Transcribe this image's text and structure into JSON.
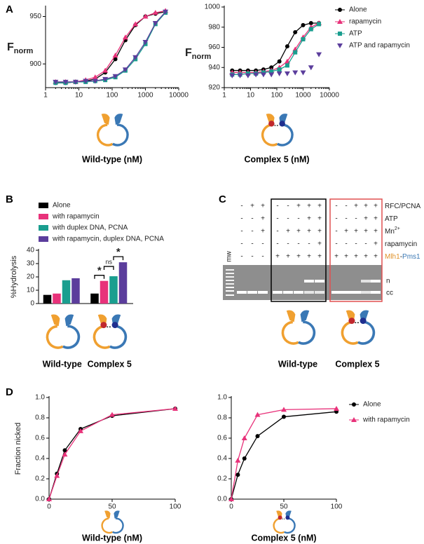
{
  "panels": [
    "A",
    "B",
    "C",
    "D"
  ],
  "chart_data": [
    {
      "type": "line",
      "x_label": "Wild-type (nM)",
      "y_label": {
        "main": "F",
        "sub": "norm"
      },
      "x_scale": "log",
      "x": [
        2,
        4,
        8,
        16,
        31,
        62,
        125,
        250,
        500,
        1000,
        2000,
        4000
      ],
      "xlim": [
        1,
        10000
      ],
      "xticks": [
        1,
        10,
        100,
        1000,
        10000
      ],
      "ylim": [
        875,
        960
      ],
      "yticks": [
        900,
        950
      ],
      "series": [
        {
          "color": "#000000",
          "marker": "circle",
          "values": [
            880,
            880,
            881,
            882,
            884,
            891,
            905,
            925,
            941,
            950,
            953,
            955
          ]
        },
        {
          "color": "#e8327a",
          "marker": "triangle",
          "values": [
            881,
            881,
            881,
            883,
            886,
            893,
            909,
            928,
            942,
            950,
            954,
            956
          ]
        },
        {
          "color": "#1a9e8f",
          "marker": "square",
          "values": [
            880,
            880,
            881,
            881,
            882,
            883,
            886,
            893,
            905,
            921,
            942,
            954
          ]
        },
        {
          "color": "#5b3d9c",
          "marker": "down-triangle",
          "values": [
            881,
            881,
            881,
            882,
            882,
            884,
            887,
            894,
            907,
            923,
            943,
            955
          ]
        }
      ]
    },
    {
      "type": "line",
      "x_label": "Complex 5 (nM)",
      "y_label": {
        "main": "F",
        "sub": "norm"
      },
      "x_scale": "log",
      "x": [
        2,
        4,
        8,
        16,
        31,
        62,
        125,
        250,
        500,
        1000,
        2000,
        4000
      ],
      "xlim": [
        1,
        10000
      ],
      "xticks": [
        1,
        10,
        100,
        1000,
        10000
      ],
      "ylim": [
        920,
        1000
      ],
      "yticks": [
        920,
        940,
        960,
        980,
        1000
      ],
      "legend": "right",
      "series": [
        {
          "name": "Alone",
          "color": "#000000",
          "marker": "circle",
          "values": [
            937,
            937,
            937,
            937,
            938,
            940,
            946,
            961,
            975,
            982,
            984,
            984
          ]
        },
        {
          "name": "rapamycin",
          "color": "#e8327a",
          "marker": "triangle",
          "values": [
            935,
            935,
            935,
            935,
            936,
            937,
            940,
            946,
            958,
            970,
            980,
            984
          ]
        },
        {
          "name": "ATP",
          "color": "#1a9e8f",
          "marker": "square",
          "values": [
            933,
            933,
            934,
            934,
            935,
            936,
            938,
            942,
            955,
            968,
            978,
            983
          ]
        },
        {
          "name": "ATP and rapamycin",
          "color": "#5b3d9c",
          "marker": "down-triangle",
          "connect": false,
          "values": [
            932,
            932,
            932,
            933,
            933,
            933,
            934,
            934,
            935,
            935,
            940,
            953
          ]
        }
      ]
    },
    {
      "type": "bar",
      "y_label": "%Hydrolysis",
      "categories": [
        "Wild-type",
        "Complex 5"
      ],
      "ylim": [
        0,
        40
      ],
      "yticks": [
        0,
        10,
        20,
        30,
        40
      ],
      "legend": "top",
      "annotations": [
        "*",
        "ns",
        "*"
      ],
      "series": [
        {
          "name": "Alone",
          "color": "#000000",
          "values": [
            6.5,
            7.5
          ]
        },
        {
          "name": "with rapamycin",
          "color": "#e8327a",
          "values": [
            7.5,
            17
          ]
        },
        {
          "name": "with duplex DNA, PCNA",
          "color": "#1a9e8f",
          "values": [
            17.5,
            20.5
          ]
        },
        {
          "name": "with rapamycin, duplex DNA, PCNA",
          "color": "#5b3d9c",
          "values": [
            19,
            31
          ]
        }
      ]
    },
    {
      "type": "line",
      "x_label": "Wild-type (nM)",
      "y_label": "Fraction nicked",
      "x": [
        0,
        6.25,
        12.5,
        25,
        50,
        100
      ],
      "xlim": [
        0,
        100
      ],
      "xticks": [
        0,
        50,
        100
      ],
      "ylim": [
        0,
        1
      ],
      "yticks": [
        {
          "value": 0,
          "label": "0.0"
        },
        0.2,
        0.4,
        0.6,
        0.8,
        {
          "value": 1,
          "label": "1.0"
        }
      ],
      "series": [
        {
          "color": "#000000",
          "marker": "circle",
          "values": [
            0,
            0.25,
            0.48,
            0.69,
            0.82,
            0.89
          ]
        },
        {
          "color": "#e8327a",
          "marker": "triangle",
          "values": [
            0,
            0.23,
            0.44,
            0.67,
            0.83,
            0.89
          ]
        }
      ]
    },
    {
      "type": "line",
      "x_label": "Complex 5 (nM)",
      "x": [
        0,
        6.25,
        12.5,
        25,
        50,
        100
      ],
      "xlim": [
        0,
        100
      ],
      "xticks": [
        0,
        50,
        100
      ],
      "ylim": [
        0,
        1
      ],
      "yticks": [
        {
          "value": 0,
          "label": "0.0"
        },
        0.2,
        0.4,
        0.6,
        0.8,
        {
          "value": 1,
          "label": "1.0"
        }
      ],
      "legend": "right",
      "series": [
        {
          "name": "Alone",
          "color": "#000000",
          "marker": "circle",
          "values": [
            0,
            0.24,
            0.4,
            0.62,
            0.81,
            0.86
          ]
        },
        {
          "name": "with rapamycin",
          "color": "#e8327a",
          "marker": "triangle",
          "values": [
            0,
            0.38,
            0.6,
            0.83,
            0.88,
            0.89
          ]
        }
      ]
    }
  ],
  "gel": {
    "lane_marker": "mw",
    "rows": [
      {
        "label": "RFC/PCNA",
        "signs": [
          "-",
          "+",
          "+",
          "-",
          "-",
          "+",
          "+",
          "+",
          "-",
          "-",
          "+",
          "+",
          "+"
        ]
      },
      {
        "label": "ATP",
        "signs": [
          "-",
          "-",
          "+",
          "-",
          "-",
          "-",
          "+",
          "+",
          "-",
          "-",
          "-",
          "+",
          "+"
        ]
      },
      {
        "label": "Mn",
        "label_sup": "2+",
        "signs": [
          "-",
          "-",
          "+",
          "-",
          "+",
          "+",
          "+",
          "+",
          "-",
          "+",
          "+",
          "+",
          "+"
        ]
      },
      {
        "label": "rapamycin",
        "signs": [
          "-",
          "-",
          "-",
          "-",
          "-",
          "-",
          "-",
          "+",
          "-",
          "-",
          "-",
          "-",
          "+"
        ]
      }
    ],
    "protein_label": [
      "Mlh1",
      "-",
      "Pms1"
    ],
    "protein_signs": [
      "-",
      "-",
      "-",
      "+",
      "+",
      "+",
      "+",
      "+",
      "+",
      "+",
      "+",
      "+",
      "+"
    ],
    "bands": [
      "n",
      "cc"
    ],
    "groups": [
      "Wild-type",
      "Complex 5"
    ]
  }
}
